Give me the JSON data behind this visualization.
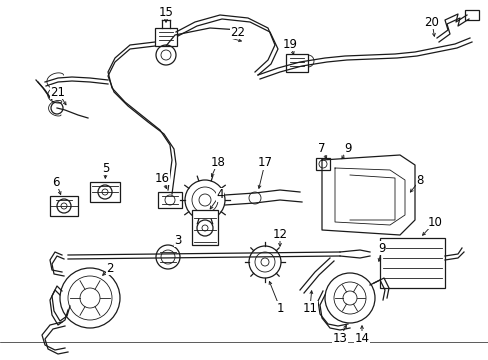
{
  "background_color": "#ffffff",
  "border_color": "#000000",
  "figsize": [
    4.89,
    3.6
  ],
  "dpi": 100,
  "line_color": "#1a1a1a",
  "text_color": "#000000",
  "label_fontsize": 8.5,
  "lw": 0.9
}
